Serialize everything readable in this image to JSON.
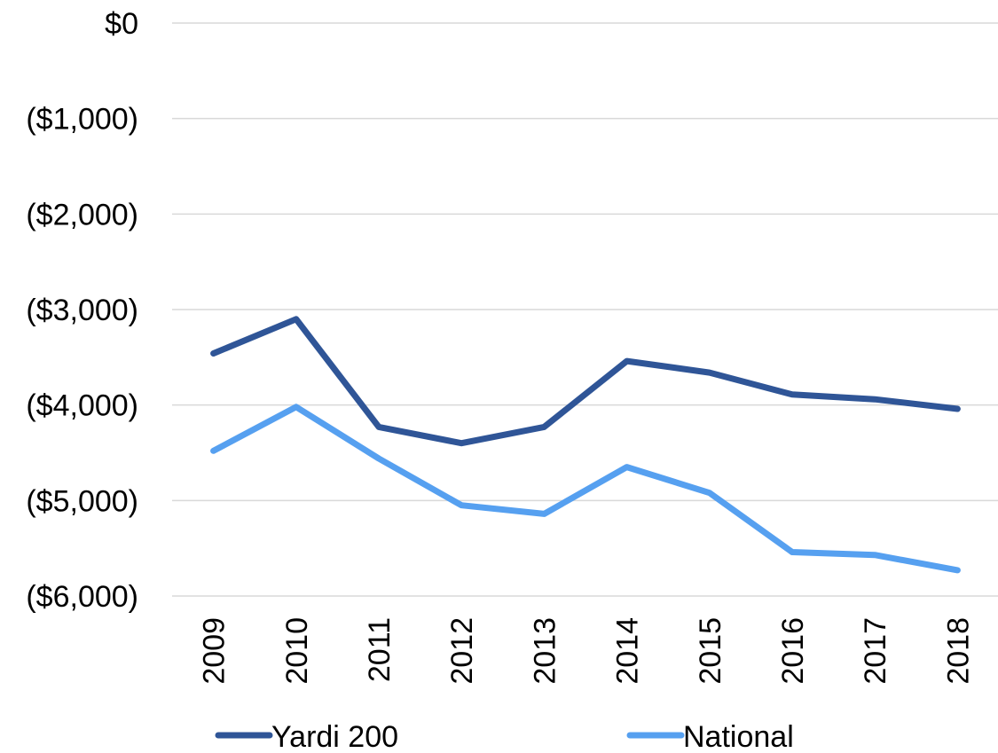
{
  "chart_data": {
    "type": "line",
    "title": "",
    "xlabel": "",
    "ylabel": "",
    "categories": [
      "2009",
      "2010",
      "2011",
      "2012",
      "2013",
      "2014",
      "2015",
      "2016",
      "2017",
      "2018"
    ],
    "ylim": [
      -6000,
      0
    ],
    "y_ticks": [
      0,
      -1000,
      -2000,
      -3000,
      -4000,
      -5000,
      -6000
    ],
    "y_tick_labels": [
      "$0",
      "($1,000)",
      "($2,000)",
      "($3,000)",
      "($4,000)",
      "($5,000)",
      "($6,000)"
    ],
    "grid": true,
    "x_tick_rotation": "vertical",
    "legend_position": "bottom",
    "series": [
      {
        "name": "Yardi 200",
        "color": "#2f5597",
        "values": [
          -3460,
          -3100,
          -4230,
          -4400,
          -4230,
          -3540,
          -3660,
          -3890,
          -3940,
          -4040
        ]
      },
      {
        "name": "National",
        "color": "#56a0f0",
        "values": [
          -4480,
          -4020,
          -4560,
          -5050,
          -5140,
          -4650,
          -4920,
          -5540,
          -5570,
          -5730
        ]
      }
    ]
  }
}
